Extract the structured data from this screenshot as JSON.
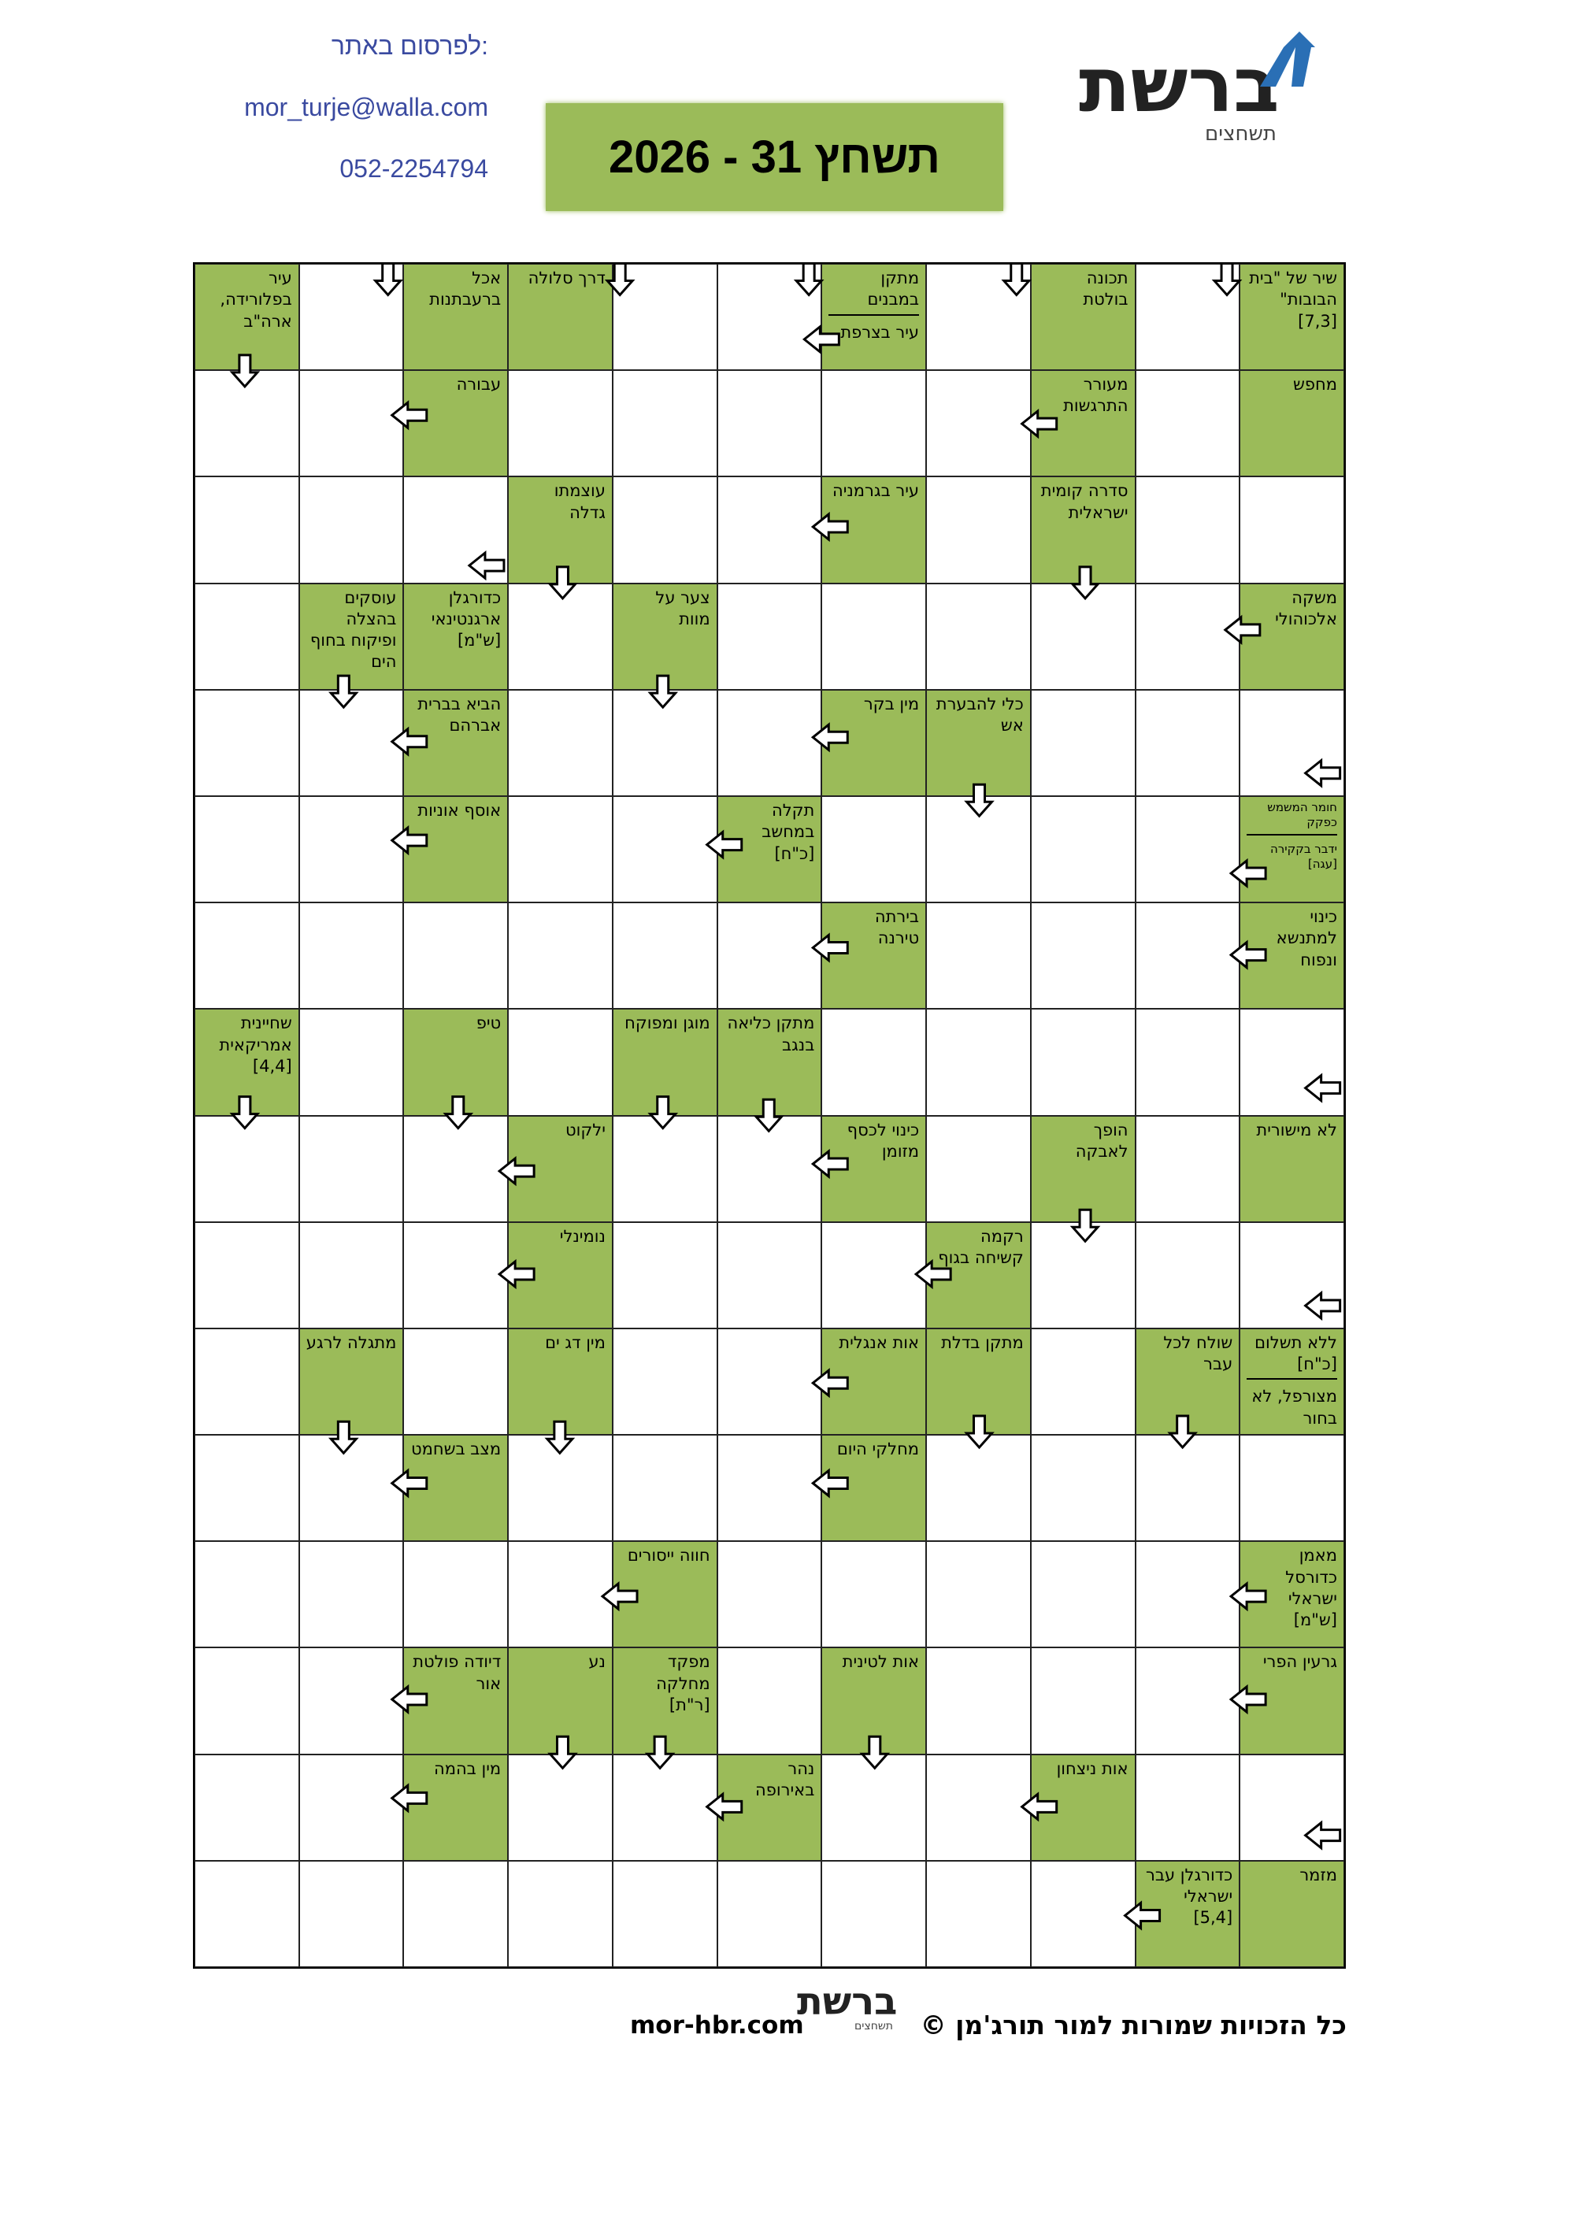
{
  "header": {
    "contact_label": "לפרסום באתר:",
    "email": "mor_turje@walla.com",
    "phone": "052-2254794",
    "title": "תשחץ 31 - 2026",
    "logo": "ברשת",
    "logo_sub": "תשחצים"
  },
  "grid": {
    "rows": [
      [
        [
          "שיר של \"בית הבובות\" [7,3]"
        ],
        null,
        [
          "תכונה בולטת"
        ],
        null,
        [
          "מתקן במבנים",
          "עיר בצרפת"
        ],
        null,
        null,
        [
          "דרך סלולה"
        ],
        [
          "אכל ברעבתנות"
        ],
        null,
        [
          "עיר בפלורידה, ארה\"ב"
        ]
      ],
      [
        [
          "מחפש"
        ],
        null,
        [
          "מעורר התרגשות"
        ],
        null,
        null,
        null,
        null,
        null,
        [
          "עבורה"
        ],
        null,
        null
      ],
      [
        null,
        null,
        [
          "סדרה קומית ישראלית"
        ],
        null,
        [
          "עיר בגרמניה"
        ],
        null,
        null,
        [
          "עוצמתו גדלה"
        ],
        null,
        null,
        null
      ],
      [
        [
          "משקה אלכוהולי"
        ],
        null,
        null,
        null,
        null,
        null,
        [
          "צער על מוות"
        ],
        null,
        [
          "כדורגלן ארגנטינאי [ש\"מ]"
        ],
        [
          "עוסקים בהצלה ופיקוח בחוף הים"
        ],
        null
      ],
      [
        null,
        null,
        null,
        [
          "כלי להבערת אש"
        ],
        [
          "מין בקר"
        ],
        null,
        null,
        null,
        [
          "הביא בברית אברהם"
        ],
        null,
        null
      ],
      [
        [
          "חומר המשמש כפקק",
          "ידבר בקקירה [עגה]"
        ],
        null,
        null,
        null,
        null,
        [
          "תקלה במחשב [כ\"ח]"
        ],
        null,
        null,
        [
          "אוסף אוניות"
        ],
        null,
        null
      ],
      [
        [
          "כינוי למתנשא ונפוח"
        ],
        null,
        null,
        null,
        [
          "בירתה טירנה"
        ],
        null,
        null,
        null,
        null,
        null,
        null
      ],
      [
        null,
        null,
        null,
        null,
        null,
        [
          "מתקן כליאה בנגב"
        ],
        [
          "מוגן ומפוקח"
        ],
        null,
        [
          "טיפ"
        ],
        null,
        [
          "שחיינית אמריקאית [4,4]"
        ]
      ],
      [
        [
          "לא מישורית"
        ],
        null,
        [
          "הופך לאבקה"
        ],
        null,
        [
          "כינוי לכסף מזומן"
        ],
        null,
        null,
        [
          "ילקוט"
        ],
        null,
        null,
        null
      ],
      [
        null,
        null,
        null,
        [
          "רקמה קשיחה בגוף"
        ],
        null,
        null,
        null,
        [
          "נומינלי"
        ],
        null,
        null,
        null
      ],
      [
        [
          "ללא תשלום [כ\"ח]",
          "מצורפל, לא בחור"
        ],
        [
          "שולח לכל עבר"
        ],
        null,
        [
          "מתקן בדלת"
        ],
        [
          "אות אנגלית"
        ],
        null,
        null,
        [
          "מין דג ים"
        ],
        null,
        [
          "מתגלה לרגע"
        ],
        null
      ],
      [
        null,
        null,
        null,
        null,
        [
          "מחלקי היום"
        ],
        null,
        null,
        null,
        [
          "מצב בשחמט"
        ],
        null,
        null
      ],
      [
        [
          "מאמן כדורסל ישראלי [ש\"מ]"
        ],
        null,
        null,
        null,
        null,
        null,
        [
          "חווה ייסורים"
        ],
        null,
        null,
        null,
        null
      ],
      [
        [
          "גרעין הפרי"
        ],
        null,
        null,
        null,
        [
          "אות לטינית"
        ],
        null,
        [
          "מפקד מחלקה [ר\"ת]"
        ],
        [
          "נע"
        ],
        [
          "דיודה פולטת אור"
        ],
        null,
        null
      ],
      [
        null,
        null,
        [
          "אות ניצחון"
        ],
        null,
        null,
        [
          "נהר באירופה"
        ],
        null,
        null,
        [
          "מין בהמה"
        ],
        null,
        null
      ],
      [
        [
          "מזמר"
        ],
        [
          "כדורגלן עבר ישראלי [5,4]"
        ],
        null,
        null,
        null,
        null,
        null,
        null,
        null,
        null,
        null
      ]
    ]
  },
  "footer": {
    "copyright": "כל הזכויות שמורות למור תורג'מן ©",
    "site": "mor-hbr.com",
    "logo": "ברשת",
    "logo_sub": "תשחצים"
  }
}
